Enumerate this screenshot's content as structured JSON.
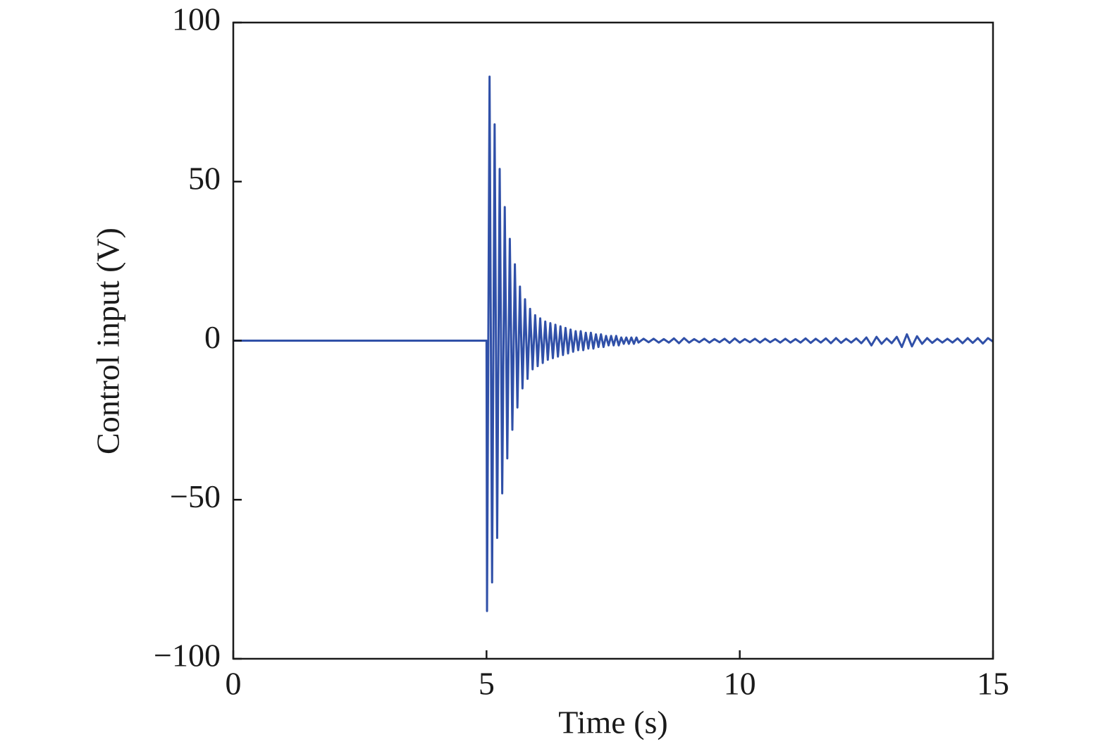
{
  "chart_data": {
    "type": "line",
    "xlabel": "Time (s)",
    "ylabel": "Control input (V)",
    "color": "#3050a8",
    "x": [
      0,
      5,
      5.01,
      5.06,
      5.11,
      5.16,
      5.21,
      5.26,
      5.31,
      5.36,
      5.41,
      5.46,
      5.51,
      5.56,
      5.61,
      5.66,
      5.71,
      5.76,
      5.81,
      5.86,
      5.91,
      5.96,
      6.01,
      6.06,
      6.11,
      6.16,
      6.21,
      6.26,
      6.31,
      6.36,
      6.41,
      6.46,
      6.51,
      6.56,
      6.61,
      6.66,
      6.71,
      6.76,
      6.81,
      6.86,
      6.91,
      6.96,
      7.01,
      7.06,
      7.11,
      7.16,
      7.21,
      7.26,
      7.31,
      7.36,
      7.41,
      7.46,
      7.51,
      7.56,
      7.61,
      7.66,
      7.71,
      7.76,
      7.81,
      7.86,
      7.91,
      7.96,
      8.0,
      8.1,
      8.2,
      8.3,
      8.4,
      8.5,
      8.6,
      8.7,
      8.8,
      8.9,
      9.0,
      9.1,
      9.2,
      9.3,
      9.4,
      9.5,
      9.6,
      9.7,
      9.8,
      9.9,
      10.0,
      10.1,
      10.2,
      10.3,
      10.4,
      10.5,
      10.6,
      10.7,
      10.8,
      10.9,
      11.0,
      11.1,
      11.2,
      11.3,
      11.4,
      11.5,
      11.6,
      11.7,
      11.8,
      11.9,
      12.0,
      12.1,
      12.2,
      12.3,
      12.4,
      12.5,
      12.6,
      12.7,
      12.8,
      12.9,
      13.0,
      13.1,
      13.2,
      13.3,
      13.4,
      13.5,
      13.6,
      13.7,
      13.8,
      13.9,
      14.0,
      14.1,
      14.2,
      14.3,
      14.4,
      14.5,
      14.6,
      14.7,
      14.8,
      14.9,
      15.0
    ],
    "values": [
      0,
      0,
      -85,
      83,
      -76,
      68,
      -62,
      54,
      -48,
      42,
      -37,
      32,
      -28,
      24,
      -21,
      17,
      -15,
      13,
      -12,
      10,
      -9,
      8,
      -8,
      7,
      -7,
      6,
      -6,
      5.5,
      -5.5,
      5,
      -5,
      4.5,
      -4.5,
      4,
      -4,
      3.5,
      -3.5,
      3,
      -3,
      3,
      -3,
      2.5,
      -2.5,
      2.5,
      -2.5,
      2,
      -2,
      2,
      -2,
      1.5,
      -1.5,
      1.5,
      -1.5,
      1.5,
      -1.5,
      1,
      -1,
      1,
      -1,
      1,
      -1,
      1,
      -0.6,
      0.6,
      -0.5,
      0.6,
      -0.6,
      0.5,
      -0.6,
      0.7,
      -0.8,
      0.8,
      -0.6,
      0.5,
      -0.5,
      0.6,
      -0.6,
      0.5,
      -0.5,
      0.6,
      -0.7,
      0.7,
      -0.6,
      0.5,
      -0.5,
      0.6,
      -0.6,
      0.6,
      -0.5,
      0.5,
      -0.6,
      0.6,
      -0.6,
      0.5,
      -0.6,
      0.7,
      -0.7,
      0.6,
      -0.6,
      0.7,
      -0.8,
      0.8,
      -0.7,
      0.6,
      -0.6,
      0.7,
      -0.8,
      1.0,
      -1.5,
      1.2,
      -1.0,
      0.7,
      -0.8,
      1.2,
      -2.0,
      2.0,
      -1.8,
      1.4,
      -1.0,
      0.8,
      -0.7,
      0.6,
      -0.6,
      0.6,
      -0.6,
      0.7,
      -0.8,
      0.8,
      -0.7,
      0.8,
      -0.9,
      0.8,
      -0.3
    ],
    "xlim": [
      0,
      15
    ],
    "xticks": [
      0,
      5,
      10,
      15
    ],
    "ylim": [
      -100,
      100
    ],
    "yticks": [
      {
        "value": -100,
        "label": "−100"
      },
      {
        "value": -50,
        "label": "−50"
      },
      0,
      50,
      100
    ]
  }
}
